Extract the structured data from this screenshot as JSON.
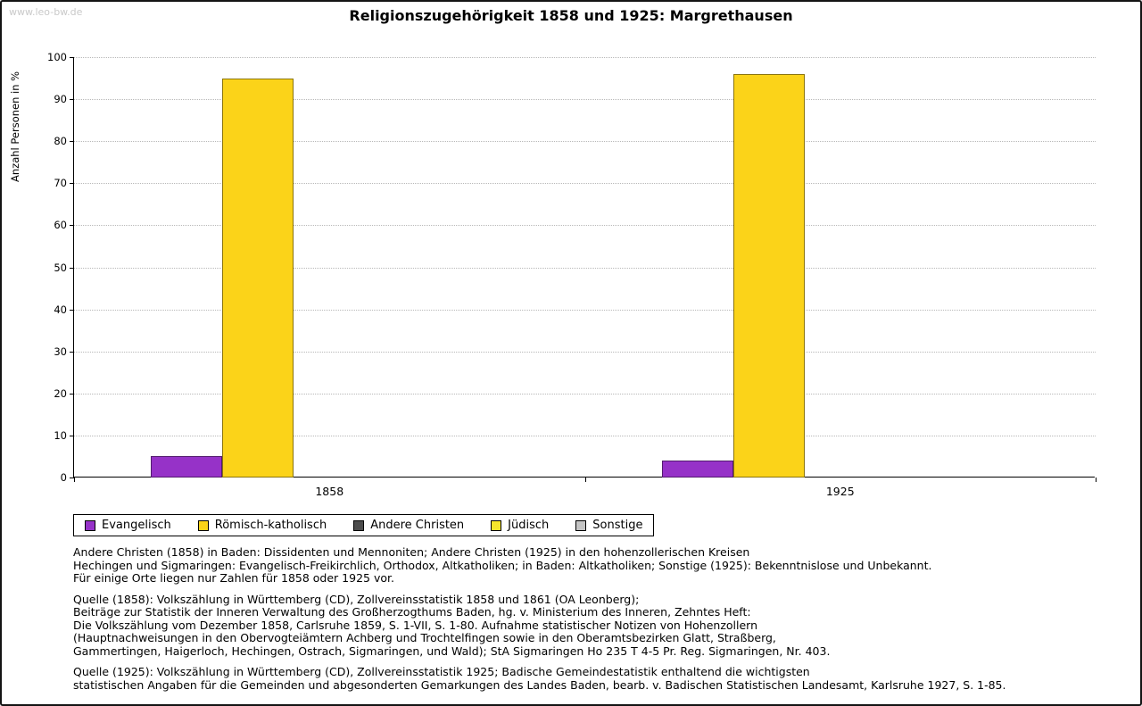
{
  "watermark": "www.leo-bw.de",
  "chart_data": {
    "type": "bar",
    "title": "Religionszugehörigkeit 1858 und 1925: Margrethausen",
    "ylabel": "Anzahl Personen in %",
    "xlabel": "",
    "ylim": [
      0,
      100
    ],
    "ytick_step": 10,
    "grid": "dotted-horizontal",
    "legend_position": "bottom-left",
    "categories": [
      "1858",
      "1925"
    ],
    "series": [
      {
        "name": "Evangelisch",
        "color": "#9632c8",
        "values": [
          5,
          4
        ]
      },
      {
        "name": "Römisch-katholisch",
        "color": "#fbd319",
        "values": [
          95,
          96
        ]
      },
      {
        "name": "Andere Christen",
        "color": "#4d4d4d",
        "values": [
          0,
          0
        ]
      },
      {
        "name": "Jüdisch",
        "color": "#f7e62c",
        "values": [
          0,
          0
        ]
      },
      {
        "name": "Sonstige",
        "color": "#c4c4c4",
        "values": [
          0,
          0
        ]
      }
    ]
  },
  "footnotes": [
    "Andere Christen (1858) in Baden: Dissidenten und Mennoniten; Andere Christen (1925) in den hohenzollerischen Kreisen\nHechingen und Sigmaringen: Evangelisch-Freikirchlich, Orthodox, Altkatholiken; in Baden: Altkatholiken; Sonstige (1925): Bekenntnislose und Unbekannt.\nFür einige Orte liegen nur Zahlen für 1858 oder 1925 vor.",
    "Quelle (1858): Volkszählung in Württemberg (CD), Zollvereinsstatistik 1858 und 1861 (OA Leonberg);\nBeiträge zur Statistik der Inneren Verwaltung des Großherzogthums Baden, hg. v. Ministerium des Inneren, Zehntes Heft:\nDie Volkszählung vom Dezember 1858, Carlsruhe 1859, S. 1-VII, S. 1-80. Aufnahme statistischer Notizen von Hohenzollern\n(Hauptnachweisungen in den Obervogteiämtern Achberg und Trochtelfingen sowie in den Oberamtsbezirken Glatt, Straßberg,\nGammertingen, Haigerloch, Hechingen, Ostrach, Sigmaringen, und Wald); StA Sigmaringen Ho 235 T 4-5 Pr. Reg. Sigmaringen, Nr. 403.",
    "Quelle (1925): Volkszählung in Württemberg (CD), Zollvereinsstatistik 1925; Badische Gemeindestatistik enthaltend die wichtigsten\nstatistischen Angaben für die Gemeinden und abgesonderten Gemarkungen des Landes Baden, bearb. v. Badischen Statistischen Landesamt, Karlsruhe 1927, S. 1-85."
  ]
}
